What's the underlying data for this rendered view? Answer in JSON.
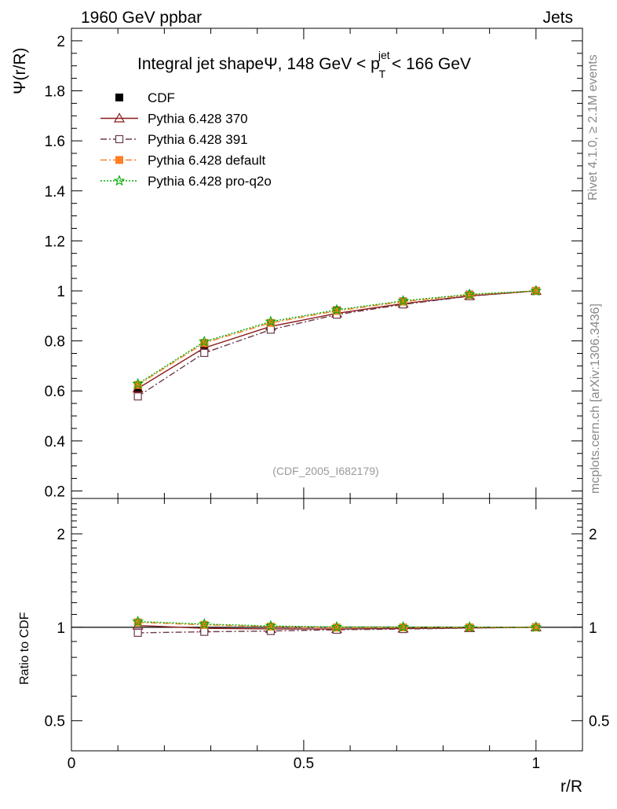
{
  "header": {
    "left": "1960 GeV ppbar",
    "right": "Jets"
  },
  "side_labels": {
    "rivet": "Rivet 4.1.0, ≥ 2.1M events",
    "mcplots": "mcplots.cern.ch [arXiv:1306.3436]"
  },
  "chart_data": [
    {
      "type": "line",
      "panel": "main",
      "title_parts": {
        "pre": "Integral jet shapeΨ, 148 GeV < p",
        "sup": "jet",
        "sub": "T",
        "post": " < 166 GeV"
      },
      "ylabel": "Ψ(r/R)",
      "xlabel": "r/R",
      "xlim": [
        0,
        1.1
      ],
      "ylim": [
        0.17,
        2.05
      ],
      "yticks": [
        0.2,
        0.4,
        0.6,
        0.8,
        1,
        1.2,
        1.4,
        1.6,
        1.8,
        2
      ],
      "ytick_labels": [
        "0.2",
        "0.4",
        "0.6",
        "0.8",
        "1",
        "1.2",
        "1.4",
        "1.6",
        "1.8",
        "2"
      ],
      "xticks": [
        0,
        0.5,
        1
      ],
      "xtick_labels": [
        "0",
        "0.5",
        "1"
      ],
      "x": [
        0.143,
        0.286,
        0.429,
        0.571,
        0.714,
        0.857,
        1.0
      ],
      "watermark": "(CDF_2005_I682179)",
      "legend_position": "top-left",
      "series": [
        {
          "name": "CDF",
          "color": "#000000",
          "style": "data",
          "marker": "square-filled",
          "values": [
            0.602,
            0.778,
            0.868,
            0.922,
            0.958,
            0.985,
            1.0
          ]
        },
        {
          "name": "Pythia 6.428 370",
          "color": "#8b1a1a",
          "style": "solid",
          "marker": "triangle-open",
          "values": [
            0.61,
            0.772,
            0.858,
            0.91,
            0.949,
            0.98,
            1.0
          ]
        },
        {
          "name": "Pythia 6.428 391",
          "color": "#6b3a4a",
          "style": "dashdot",
          "marker": "square-open",
          "values": [
            0.578,
            0.752,
            0.845,
            0.905,
            0.946,
            0.979,
            1.0
          ]
        },
        {
          "name": "Pythia 6.428 default",
          "color": "#ff7f24",
          "style": "dashdot",
          "marker": "square-filled",
          "values": [
            0.624,
            0.792,
            0.872,
            0.92,
            0.957,
            0.984,
            1.0
          ]
        },
        {
          "name": "Pythia 6.428 pro-q2o",
          "color": "#00aa00",
          "style": "dotted",
          "marker": "star-open",
          "values": [
            0.628,
            0.797,
            0.877,
            0.924,
            0.96,
            0.986,
            1.0
          ]
        }
      ]
    },
    {
      "type": "line",
      "panel": "ratio",
      "ylabel": "Ratio to CDF",
      "xlabel": "r/R",
      "yscale": "log",
      "xlim": [
        0,
        1.1
      ],
      "ylim": [
        0.4,
        2.6
      ],
      "yticks": [
        0.5,
        1,
        2
      ],
      "ytick_labels": [
        "0.5",
        "1",
        "2"
      ],
      "x": [
        0.143,
        0.286,
        0.429,
        0.571,
        0.714,
        0.857,
        1.0
      ],
      "series": [
        {
          "name": "Pythia 6.428 370",
          "color": "#8b1a1a",
          "style": "solid",
          "marker": "triangle-open",
          "values": [
            1.013,
            0.992,
            0.988,
            0.987,
            0.991,
            0.995,
            1.0
          ]
        },
        {
          "name": "Pythia 6.428 391",
          "color": "#6b3a4a",
          "style": "dashdot",
          "marker": "square-open",
          "values": [
            0.96,
            0.967,
            0.973,
            0.982,
            0.987,
            0.994,
            1.0
          ]
        },
        {
          "name": "Pythia 6.428 default",
          "color": "#ff7f24",
          "style": "dashdot",
          "marker": "square-filled",
          "values": [
            1.037,
            1.018,
            1.005,
            0.998,
            0.999,
            0.999,
            1.0
          ]
        },
        {
          "name": "Pythia 6.428 pro-q2o",
          "color": "#00aa00",
          "style": "dotted",
          "marker": "star-open",
          "values": [
            1.043,
            1.024,
            1.01,
            1.002,
            1.002,
            1.001,
            1.0
          ]
        }
      ]
    }
  ]
}
